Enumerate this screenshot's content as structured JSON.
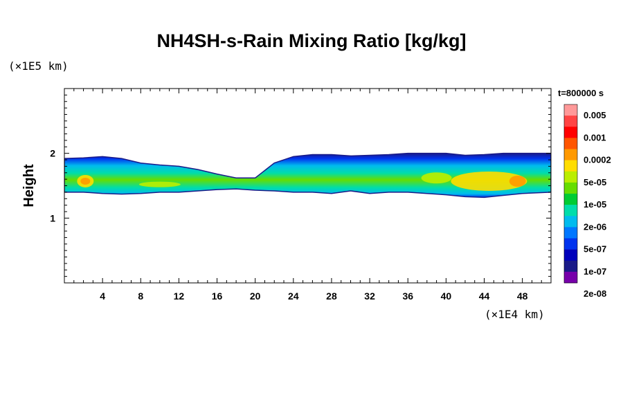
{
  "chart_data": {
    "type": "heatmap",
    "title": "NH4SH-s-Rain Mixing Ratio [kg/kg]",
    "ylabel": "Height",
    "y_unit": "(×1E5 km)",
    "x_unit": "(×1E4 km)",
    "time_label": "t=800000 s",
    "xlim": [
      0,
      51
    ],
    "ylim": [
      0,
      3
    ],
    "x_ticks": [
      "4",
      "8",
      "12",
      "16",
      "20",
      "24",
      "28",
      "32",
      "36",
      "40",
      "44",
      "48"
    ],
    "x_tick_values": [
      4,
      8,
      12,
      16,
      20,
      24,
      28,
      32,
      36,
      40,
      44,
      48
    ],
    "y_ticks": [
      "1",
      "2"
    ],
    "y_tick_values": [
      1,
      2
    ],
    "colorbar": {
      "labels": [
        "0.005",
        "0.001",
        "0.0002",
        "5e-05",
        "1e-05",
        "2e-06",
        "5e-07",
        "1e-07",
        "2e-08"
      ],
      "colors_top_to_bottom": [
        "#ff9999",
        "#ff4444",
        "#ff0000",
        "#ff5500",
        "#ff9900",
        "#ffdd00",
        "#bbee00",
        "#66dd00",
        "#00cc33",
        "#00ddaa",
        "#00bbee",
        "#0077ff",
        "#0033ee",
        "#0000bb",
        "#1a1a88",
        "#7700aa"
      ]
    },
    "layer": {
      "top_height": [
        1.92,
        1.93,
        1.95,
        1.92,
        1.85,
        1.82,
        1.8,
        1.75,
        1.68,
        1.62,
        1.62,
        1.85,
        1.95,
        1.98,
        1.98,
        1.96,
        1.97,
        1.98,
        2.0,
        2.0,
        2.0,
        1.97,
        1.98,
        2.0,
        2.0,
        2.0
      ],
      "bottom_height": [
        1.4,
        1.4,
        1.38,
        1.37,
        1.38,
        1.4,
        1.4,
        1.42,
        1.44,
        1.45,
        1.43,
        1.42,
        1.4,
        1.4,
        1.38,
        1.42,
        1.38,
        1.4,
        1.4,
        1.38,
        1.36,
        1.33,
        1.32,
        1.35,
        1.38,
        1.4
      ],
      "x_positions": [
        0,
        2,
        4,
        6,
        8,
        10,
        12,
        14,
        16,
        18,
        20,
        22,
        24,
        26,
        28,
        30,
        32,
        34,
        36,
        38,
        40,
        42,
        44,
        46,
        48,
        51
      ]
    }
  }
}
